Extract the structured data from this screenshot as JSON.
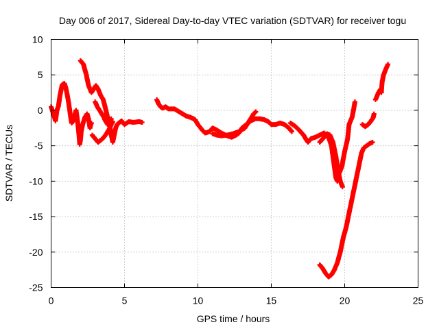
{
  "chart_data": {
    "type": "scatter",
    "title": "Day 006 of 2017, Sidereal Day-to-day VTEC variation (SDTVAR) for receiver togu",
    "xlabel": "GPS time / hours",
    "ylabel": "SDTVAR / TECUs",
    "xlim": [
      0,
      25
    ],
    "ylim": [
      -25,
      10
    ],
    "xticks": [
      "0",
      "5",
      "10",
      "15",
      "20",
      "25"
    ],
    "yticks": [
      "10",
      "5",
      "0",
      "-5",
      "-10",
      "-15",
      "-20",
      "-25"
    ],
    "grid": true,
    "marker": "+",
    "color": "#ff0000",
    "series": [
      {
        "name": "seg-1",
        "points": [
          [
            0.0,
            0.5
          ],
          [
            0.2,
            -0.8
          ],
          [
            0.3,
            -1.5
          ],
          [
            0.4,
            0.0
          ],
          [
            0.5,
            0.6
          ],
          [
            0.6,
            2.0
          ],
          [
            0.75,
            3.6
          ],
          [
            0.9,
            3.8
          ],
          [
            1.0,
            3.2
          ],
          [
            1.1,
            2.2
          ],
          [
            1.2,
            1.0
          ],
          [
            1.3,
            -0.5
          ],
          [
            1.4,
            -1.8
          ],
          [
            1.5,
            -1.5
          ],
          [
            1.6,
            -0.8
          ],
          [
            1.7,
            0.0
          ],
          [
            1.8,
            -1.5
          ],
          [
            1.9,
            -3.5
          ],
          [
            1.95,
            -4.8
          ],
          [
            2.0,
            -4.2
          ],
          [
            2.05,
            -3.0
          ],
          [
            2.15,
            -2.0
          ],
          [
            2.3,
            -1.0
          ],
          [
            2.45,
            -0.5
          ],
          [
            2.55,
            -1.2
          ],
          [
            2.65,
            -2.5
          ],
          [
            2.7,
            -2.0
          ],
          [
            2.75,
            -1.8
          ]
        ]
      },
      {
        "name": "seg-2",
        "points": [
          [
            2.0,
            7.0
          ],
          [
            2.2,
            6.5
          ],
          [
            2.4,
            5.0
          ],
          [
            2.55,
            3.5
          ],
          [
            2.75,
            2.5
          ],
          [
            2.9,
            3.0
          ],
          [
            3.05,
            3.5
          ],
          [
            3.2,
            3.0
          ],
          [
            3.4,
            2.0
          ],
          [
            3.55,
            1.5
          ],
          [
            3.7,
            0.3
          ],
          [
            3.85,
            -1.0
          ],
          [
            4.0,
            -2.3
          ],
          [
            4.1,
            -3.5
          ],
          [
            4.2,
            -4.5
          ],
          [
            4.3,
            -3.5
          ],
          [
            4.4,
            -2.5
          ],
          [
            4.5,
            -2.0
          ],
          [
            4.6,
            -1.8
          ],
          [
            4.8,
            -1.5
          ],
          [
            5.0,
            -2.0
          ],
          [
            5.3,
            -1.6
          ],
          [
            5.6,
            -1.7
          ],
          [
            6.0,
            -1.6
          ],
          [
            6.2,
            -1.7
          ]
        ]
      },
      {
        "name": "seg-3",
        "points": [
          [
            2.8,
            -3.5
          ],
          [
            3.0,
            -4.0
          ],
          [
            3.2,
            -4.5
          ],
          [
            3.4,
            -4.2
          ],
          [
            3.6,
            -3.8
          ],
          [
            3.8,
            -3.2
          ],
          [
            4.0,
            -2.5
          ],
          [
            4.1,
            -2.0
          ],
          [
            4.2,
            -1.6
          ]
        ]
      },
      {
        "name": "seg-4",
        "points": [
          [
            3.0,
            1.2
          ],
          [
            3.15,
            0.5
          ],
          [
            3.3,
            0.0
          ],
          [
            3.45,
            -0.5
          ],
          [
            3.6,
            -1.0
          ],
          [
            3.7,
            -1.5
          ],
          [
            3.85,
            -2.0
          ],
          [
            4.0,
            -1.5
          ],
          [
            4.1,
            -1.2
          ]
        ]
      },
      {
        "name": "seg-5",
        "points": [
          [
            7.2,
            1.5
          ],
          [
            7.3,
            1.0
          ],
          [
            7.45,
            0.5
          ],
          [
            7.6,
            0.3
          ],
          [
            7.8,
            0.5
          ],
          [
            8.0,
            0.2
          ],
          [
            8.4,
            0.2
          ],
          [
            8.8,
            -0.3
          ],
          [
            9.2,
            -0.8
          ],
          [
            9.5,
            -1.0
          ],
          [
            9.8,
            -1.3
          ],
          [
            10.0,
            -2.0
          ],
          [
            10.3,
            -2.8
          ],
          [
            10.5,
            -3.2
          ],
          [
            10.8,
            -3.0
          ],
          [
            11.0,
            -2.5
          ],
          [
            11.3,
            -2.8
          ],
          [
            11.6,
            -3.2
          ],
          [
            12.0,
            -3.6
          ],
          [
            12.3,
            -3.8
          ],
          [
            12.6,
            -3.5
          ],
          [
            12.8,
            -3.2
          ],
          [
            13.0,
            -2.5
          ],
          [
            13.3,
            -2.0
          ],
          [
            13.6,
            -1.5
          ],
          [
            13.9,
            -1.2
          ],
          [
            14.2,
            -1.2
          ],
          [
            14.5,
            -1.3
          ],
          [
            14.8,
            -1.6
          ],
          [
            15.0,
            -2.0
          ],
          [
            15.3,
            -2.0
          ],
          [
            15.6,
            -1.8
          ],
          [
            15.9,
            -2.0
          ],
          [
            16.2,
            -2.5
          ],
          [
            16.4,
            -3.0
          ]
        ]
      },
      {
        "name": "seg-6",
        "points": [
          [
            11.0,
            -3.3
          ],
          [
            11.3,
            -3.5
          ],
          [
            11.6,
            -3.6
          ],
          [
            12.0,
            -3.5
          ],
          [
            12.4,
            -3.3
          ],
          [
            12.8,
            -3.0
          ],
          [
            13.2,
            -2.5
          ],
          [
            13.5,
            -1.5
          ],
          [
            13.8,
            -0.5
          ],
          [
            13.95,
            -0.2
          ]
        ]
      },
      {
        "name": "seg-7",
        "points": [
          [
            16.3,
            -1.8
          ],
          [
            16.6,
            -2.2
          ],
          [
            16.9,
            -2.8
          ],
          [
            17.2,
            -3.5
          ],
          [
            17.4,
            -4.2
          ],
          [
            17.5,
            -4.5
          ],
          [
            17.7,
            -4.0
          ],
          [
            18.0,
            -3.8
          ],
          [
            18.3,
            -3.5
          ],
          [
            18.6,
            -3.2
          ],
          [
            18.9,
            -3.8
          ],
          [
            19.1,
            -5.0
          ],
          [
            19.2,
            -6.5
          ],
          [
            19.3,
            -8.0
          ],
          [
            19.4,
            -9.5
          ],
          [
            19.5,
            -10.0
          ],
          [
            19.6,
            -9.0
          ],
          [
            19.8,
            -8.0
          ],
          [
            20.0,
            -5.8
          ],
          [
            20.2,
            -4.0
          ],
          [
            20.3,
            -2.0
          ],
          [
            20.4,
            -1.5
          ],
          [
            20.5,
            -1.0
          ],
          [
            20.6,
            0.0
          ],
          [
            20.7,
            1.2
          ]
        ]
      },
      {
        "name": "seg-8",
        "points": [
          [
            18.3,
            -4.5
          ],
          [
            18.6,
            -3.8
          ],
          [
            18.8,
            -3.3
          ],
          [
            19.0,
            -3.5
          ],
          [
            19.2,
            -4.5
          ],
          [
            19.4,
            -6.5
          ],
          [
            19.55,
            -8.5
          ],
          [
            19.7,
            -10.0
          ],
          [
            19.85,
            -10.8
          ]
        ]
      },
      {
        "name": "seg-9",
        "points": [
          [
            18.3,
            -21.8
          ],
          [
            18.5,
            -22.3
          ],
          [
            18.7,
            -23.0
          ],
          [
            18.9,
            -23.5
          ],
          [
            19.1,
            -23.2
          ],
          [
            19.3,
            -22.5
          ],
          [
            19.5,
            -21.5
          ],
          [
            19.7,
            -20.0
          ],
          [
            19.9,
            -18.0
          ],
          [
            20.1,
            -16.5
          ],
          [
            20.3,
            -14.5
          ],
          [
            20.5,
            -12.5
          ],
          [
            20.7,
            -10.5
          ],
          [
            20.9,
            -8.5
          ],
          [
            21.0,
            -7.5
          ],
          [
            21.15,
            -6.0
          ],
          [
            21.3,
            -5.3
          ],
          [
            21.5,
            -5.0
          ],
          [
            21.7,
            -4.7
          ],
          [
            21.9,
            -4.5
          ]
        ]
      },
      {
        "name": "seg-10",
        "points": [
          [
            21.2,
            -2.0
          ],
          [
            21.4,
            -2.3
          ],
          [
            21.6,
            -2.0
          ],
          [
            21.8,
            -1.5
          ],
          [
            21.95,
            -1.0
          ],
          [
            22.0,
            -0.5
          ]
        ]
      },
      {
        "name": "seg-11",
        "points": [
          [
            22.1,
            1.5
          ],
          [
            22.3,
            2.5
          ],
          [
            22.45,
            3.0
          ],
          [
            22.5,
            2.5
          ],
          [
            22.55,
            4.0
          ],
          [
            22.65,
            5.0
          ],
          [
            22.8,
            5.8
          ],
          [
            22.95,
            6.5
          ]
        ]
      }
    ]
  }
}
